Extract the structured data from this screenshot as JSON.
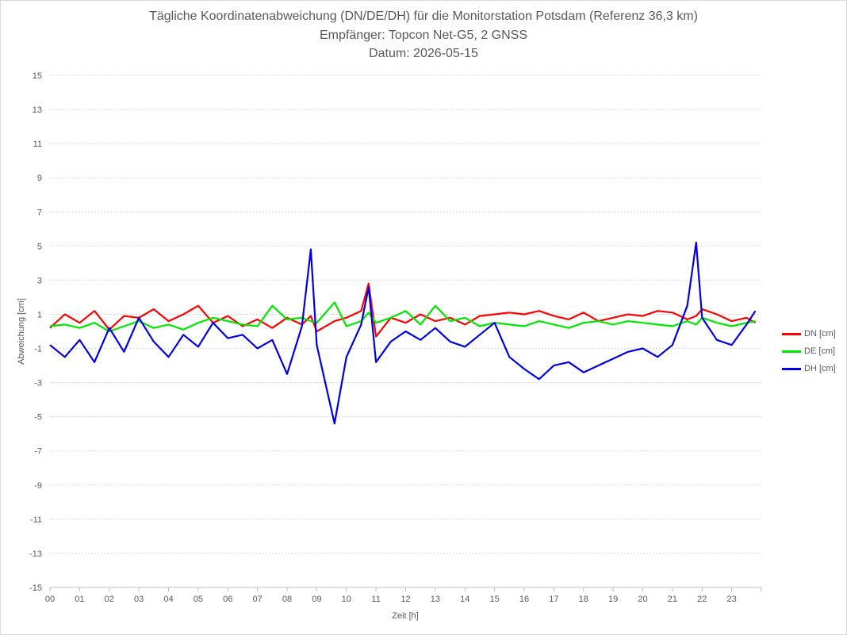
{
  "chart_data": {
    "type": "line",
    "title_lines": [
      "Tägliche Koordinatenabweichung (DN/DE/DH) für die Monitorstation Potsdam (Referenz 36,3 km)",
      "Empfänger: Topcon Net-G5, 2 GNSS",
      "Datum: 2026-05-15"
    ],
    "xlabel": "Zeit [h]",
    "ylabel": "Abweichung [cm]",
    "ylim": [
      -15,
      15
    ],
    "xlim": [
      0,
      24
    ],
    "yticks": [
      "15",
      "13",
      "11",
      "9",
      "7",
      "5",
      "3",
      "1",
      "-1",
      "-3",
      "-5",
      "-7",
      "-9",
      "-11",
      "-13",
      "-15"
    ],
    "xticks": [
      "00",
      "01",
      "02",
      "03",
      "04",
      "05",
      "06",
      "07",
      "08",
      "09",
      "10",
      "11",
      "12",
      "13",
      "14",
      "15",
      "16",
      "17",
      "18",
      "19",
      "20",
      "21",
      "22",
      "23"
    ],
    "grid": true,
    "legend_position": "right",
    "x": [
      0,
      0.5,
      1,
      1.5,
      2,
      2.5,
      3,
      3.5,
      4,
      4.5,
      5,
      5.5,
      6,
      6.5,
      7,
      7.5,
      8,
      8.5,
      8.8,
      9,
      9.6,
      10,
      10.5,
      10.75,
      11,
      11.5,
      12,
      12.5,
      13,
      13.5,
      14,
      14.5,
      15,
      15.5,
      16,
      16.5,
      17,
      17.5,
      18,
      18.5,
      19,
      19.5,
      20,
      20.5,
      21,
      21.5,
      21.8,
      22,
      22.5,
      23,
      23.5,
      23.8
    ],
    "series": [
      {
        "name": "DN [cm]",
        "color": "#ff0000",
        "values": [
          0.2,
          1.0,
          0.5,
          1.2,
          0.1,
          0.9,
          0.8,
          1.3,
          0.6,
          1.0,
          1.5,
          0.5,
          0.9,
          0.3,
          0.7,
          0.2,
          0.8,
          0.4,
          0.9,
          0.0,
          0.6,
          0.8,
          1.2,
          2.8,
          -0.3,
          0.8,
          0.5,
          1.0,
          0.6,
          0.8,
          0.4,
          0.9,
          1.0,
          1.1,
          1.0,
          1.2,
          0.9,
          0.7,
          1.1,
          0.6,
          0.8,
          1.0,
          0.9,
          1.2,
          1.1,
          0.7,
          0.9,
          1.3,
          1.0,
          0.6,
          0.8,
          0.5
        ]
      },
      {
        "name": "DE [cm]",
        "color": "#00e600",
        "values": [
          0.3,
          0.4,
          0.2,
          0.5,
          0.0,
          0.3,
          0.6,
          0.2,
          0.4,
          0.1,
          0.5,
          0.8,
          0.6,
          0.4,
          0.3,
          1.5,
          0.7,
          0.8,
          0.6,
          0.5,
          1.7,
          0.3,
          0.6,
          1.1,
          0.5,
          0.8,
          1.2,
          0.4,
          1.5,
          0.6,
          0.8,
          0.3,
          0.5,
          0.4,
          0.3,
          0.6,
          0.4,
          0.2,
          0.5,
          0.6,
          0.4,
          0.6,
          0.5,
          0.4,
          0.3,
          0.6,
          0.4,
          0.8,
          0.5,
          0.3,
          0.5,
          0.6
        ]
      },
      {
        "name": "DH [cm]",
        "color": "#0000e6",
        "values": [
          -0.8,
          -1.5,
          -0.5,
          -1.8,
          0.2,
          -1.2,
          0.8,
          -0.6,
          -1.5,
          -0.2,
          -0.9,
          0.5,
          -0.4,
          -0.2,
          -1.0,
          -0.5,
          -2.5,
          0.3,
          4.8,
          -0.8,
          -5.4,
          -1.5,
          0.4,
          2.6,
          -1.8,
          -0.6,
          0.0,
          -0.5,
          0.2,
          -0.6,
          -0.9,
          -0.2,
          0.5,
          -1.5,
          -2.2,
          -2.8,
          -2.0,
          -1.8,
          -2.4,
          -2.0,
          -1.6,
          -1.2,
          -1.0,
          -1.5,
          -0.8,
          1.5,
          5.2,
          0.8,
          -0.5,
          -0.8,
          0.4,
          1.2
        ]
      }
    ]
  }
}
